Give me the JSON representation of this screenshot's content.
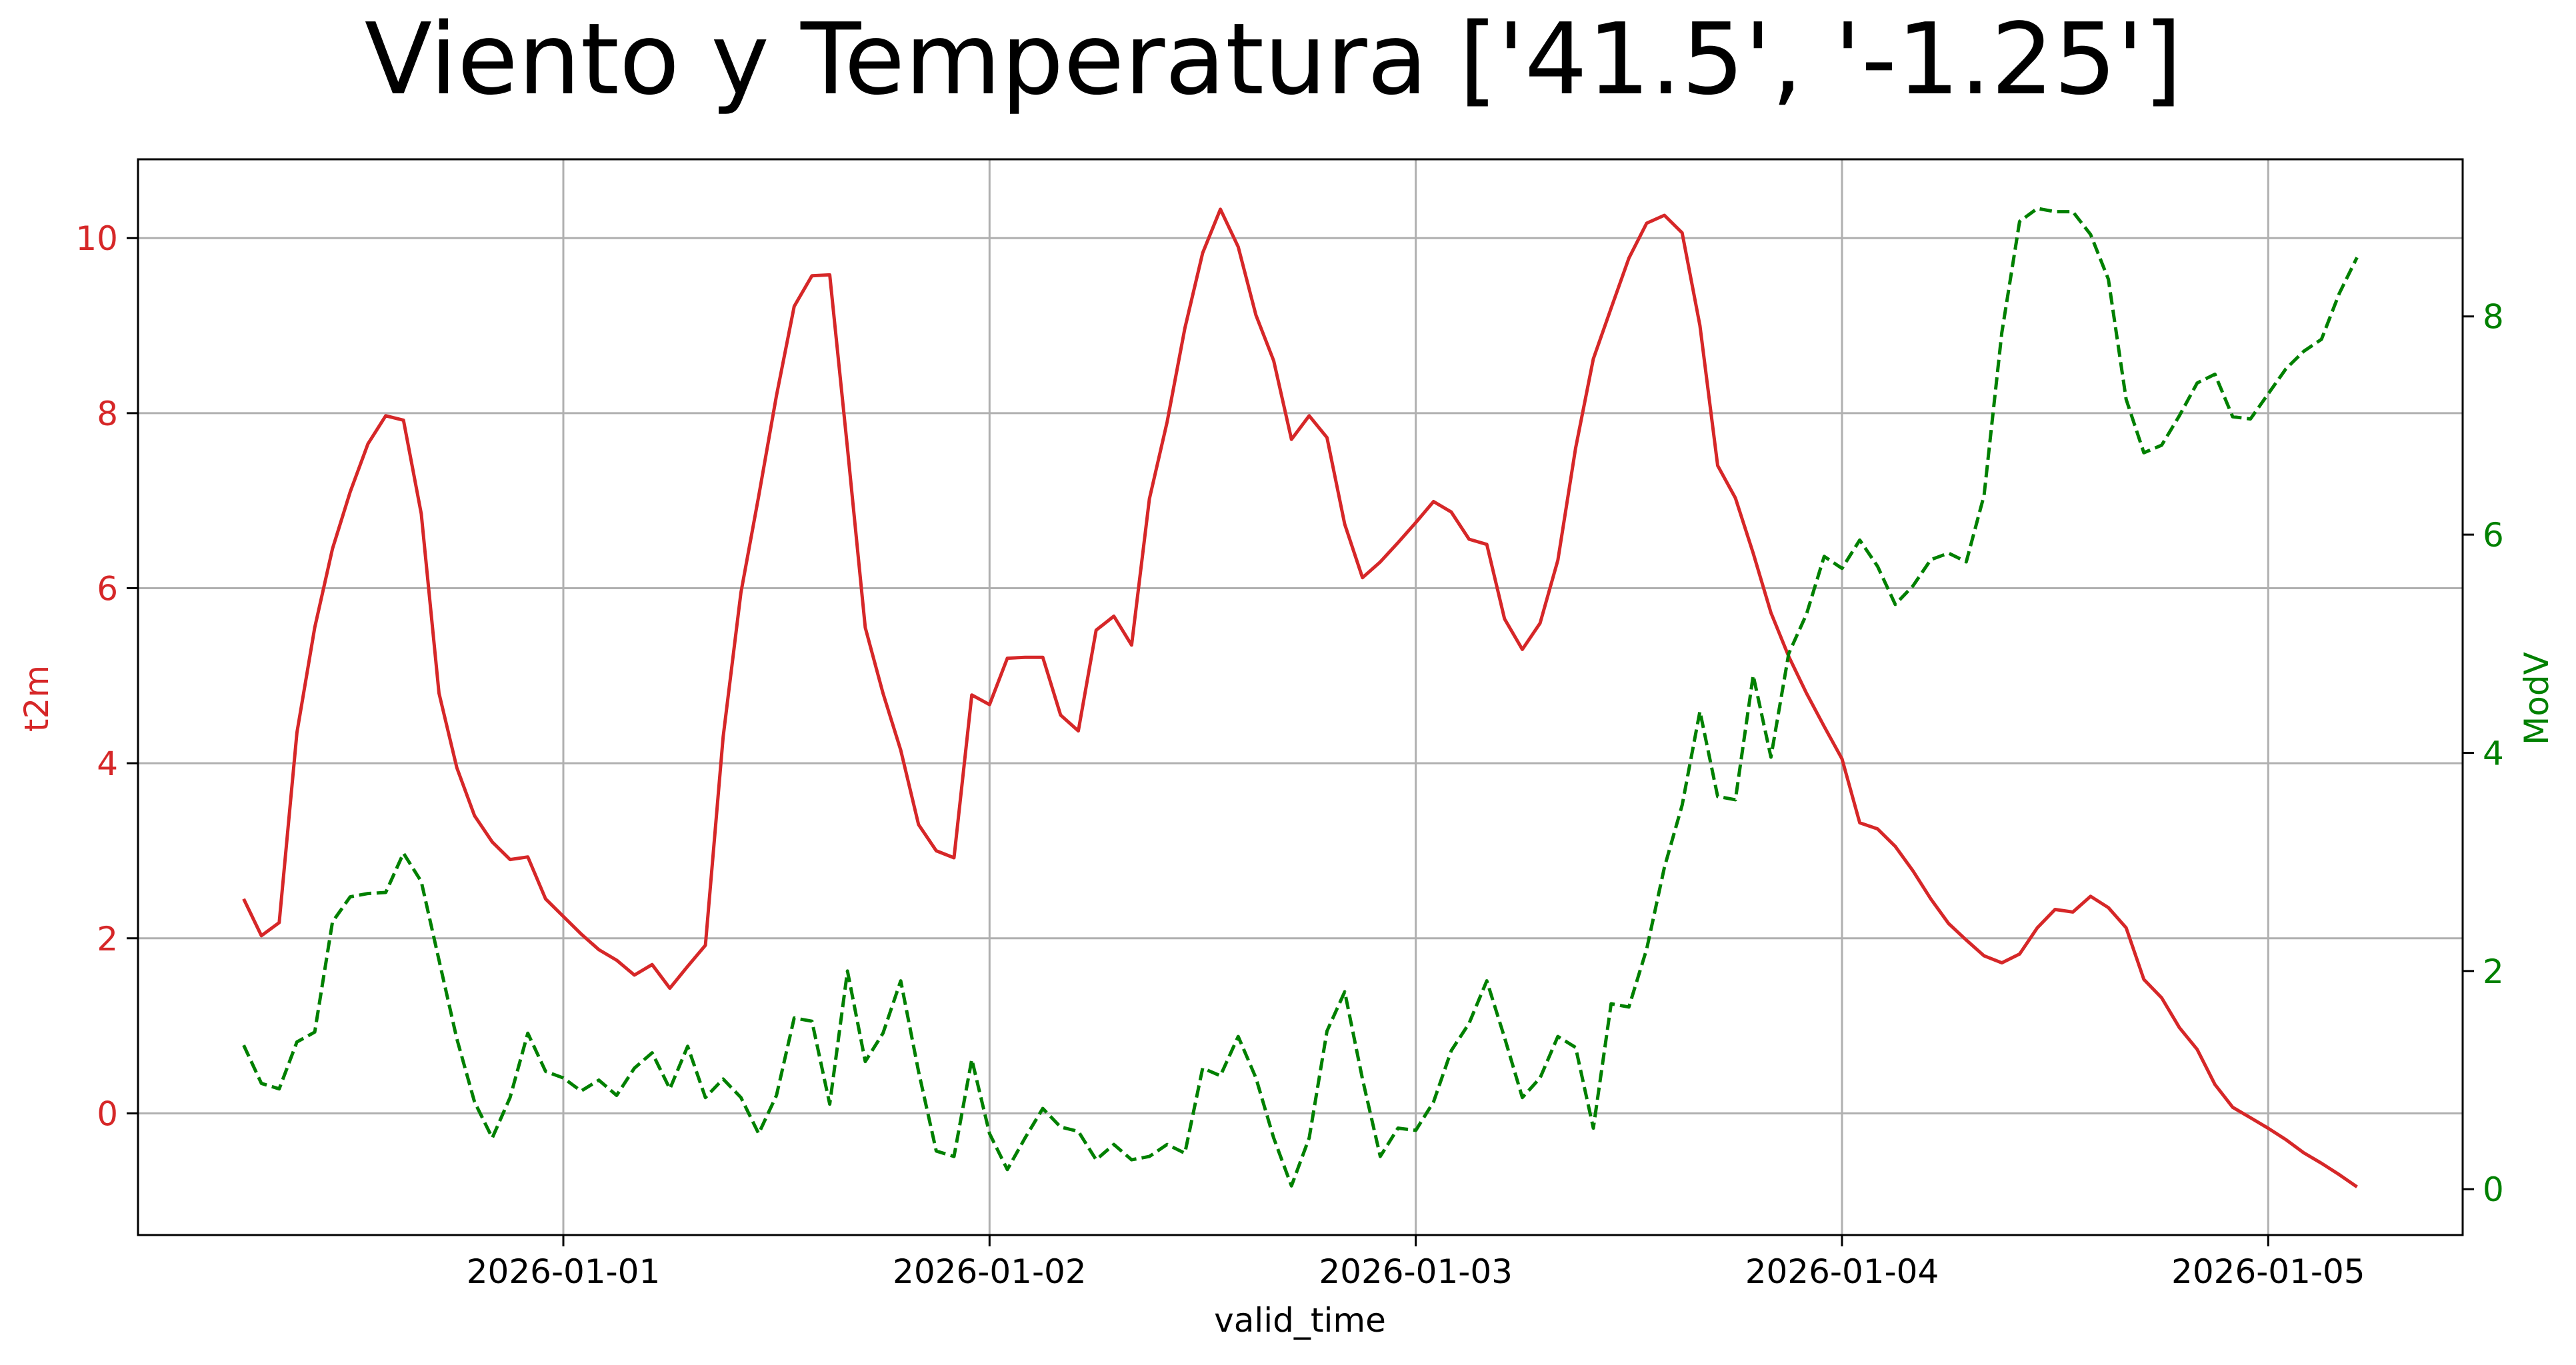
{
  "chart_data": {
    "type": "line",
    "title": "Viento y Temperatura ['41.5', '-1.25']",
    "xlabel": "valid_time",
    "ylabel_left": "t2m",
    "ylabel_right": "ModV",
    "x_start": "2025-12-31T06:00",
    "x_step_hours": 1,
    "xlim": [
      "2025-12-31T00:03",
      "2026-01-05T10:57"
    ],
    "x_ticks": [
      "2026-01-01",
      "2026-01-02",
      "2026-01-03",
      "2026-01-04",
      "2026-01-05"
    ],
    "ylim_left": [
      -1.39,
      10.9
    ],
    "ylim_right": [
      -0.42,
      9.44
    ],
    "y_ticks_left": [
      0,
      2,
      4,
      6,
      8,
      10
    ],
    "y_ticks_right": [
      0,
      2,
      4,
      6,
      8
    ],
    "grid": true,
    "colors": {
      "t2m": "#d62728",
      "ModV": "#008000",
      "grid": "#b0b0b0"
    },
    "series": [
      {
        "axis": "left",
        "style": "solid",
        "color": "#d62728",
        "values": [
          2.45,
          2.03,
          2.18,
          4.35,
          5.55,
          6.45,
          7.1,
          7.65,
          7.97,
          7.92,
          6.85,
          4.8,
          3.95,
          3.4,
          3.1,
          2.9,
          2.93,
          2.45,
          2.25,
          2.05,
          1.87,
          1.75,
          1.58,
          1.7,
          1.43,
          1.68,
          1.92,
          4.3,
          5.95,
          7.05,
          8.2,
          9.22,
          9.57,
          9.58,
          7.6,
          5.55,
          4.8,
          4.15,
          3.3,
          3.0,
          2.92,
          4.78,
          4.67,
          5.2,
          5.21,
          5.21,
          4.55,
          4.37,
          5.52,
          5.68,
          5.35,
          7.02,
          7.9,
          8.97,
          9.83,
          10.33,
          9.9,
          9.12,
          8.6,
          7.7,
          7.97,
          7.72,
          6.73,
          6.12,
          6.3,
          6.52,
          6.75,
          6.99,
          6.87,
          6.56,
          6.5,
          5.65,
          5.3,
          5.6,
          6.32,
          7.6,
          8.62,
          9.2,
          9.77,
          10.17,
          10.26,
          10.06,
          9.0,
          7.4,
          7.03,
          6.4,
          5.72,
          5.22,
          4.8,
          4.42,
          4.05,
          3.32,
          3.25,
          3.05,
          2.77,
          2.45,
          2.17,
          1.98,
          1.8,
          1.72,
          1.82,
          2.12,
          2.33,
          2.3,
          2.48,
          2.35,
          2.12,
          1.53,
          1.32,
          0.98,
          0.73,
          0.33,
          0.07,
          -0.05,
          -0.17,
          -0.3,
          -0.45,
          -0.57,
          -0.7,
          -0.84
        ]
      },
      {
        "axis": "right",
        "style": "dashed",
        "color": "#008000",
        "values": [
          1.32,
          0.97,
          0.92,
          1.35,
          1.44,
          2.45,
          2.68,
          2.71,
          2.72,
          3.08,
          2.82,
          2.1,
          1.38,
          0.8,
          0.47,
          0.84,
          1.43,
          1.08,
          1.02,
          0.9,
          1.0,
          0.86,
          1.11,
          1.25,
          0.92,
          1.31,
          0.84,
          1.01,
          0.84,
          0.51,
          0.86,
          1.57,
          1.54,
          0.78,
          2.0,
          1.17,
          1.43,
          1.91,
          1.08,
          0.35,
          0.3,
          1.19,
          0.51,
          0.18,
          0.47,
          0.74,
          0.57,
          0.53,
          0.27,
          0.41,
          0.27,
          0.3,
          0.41,
          0.33,
          1.11,
          1.04,
          1.4,
          1.02,
          0.47,
          0.03,
          0.47,
          1.45,
          1.81,
          1.01,
          0.3,
          0.56,
          0.54,
          0.8,
          1.27,
          1.52,
          1.91,
          1.39,
          0.84,
          1.02,
          1.4,
          1.3,
          0.56,
          1.7,
          1.67,
          2.2,
          2.95,
          3.52,
          4.38,
          3.6,
          3.57,
          4.71,
          3.96,
          4.91,
          5.27,
          5.8,
          5.69,
          5.95,
          5.71,
          5.36,
          5.53,
          5.77,
          5.83,
          5.75,
          6.36,
          7.85,
          8.87,
          8.99,
          8.96,
          8.96,
          8.75,
          8.34,
          7.24,
          6.75,
          6.82,
          7.09,
          7.39,
          7.47,
          7.08,
          7.06,
          7.29,
          7.52,
          7.68,
          7.79,
          8.21,
          8.54
        ]
      }
    ]
  }
}
